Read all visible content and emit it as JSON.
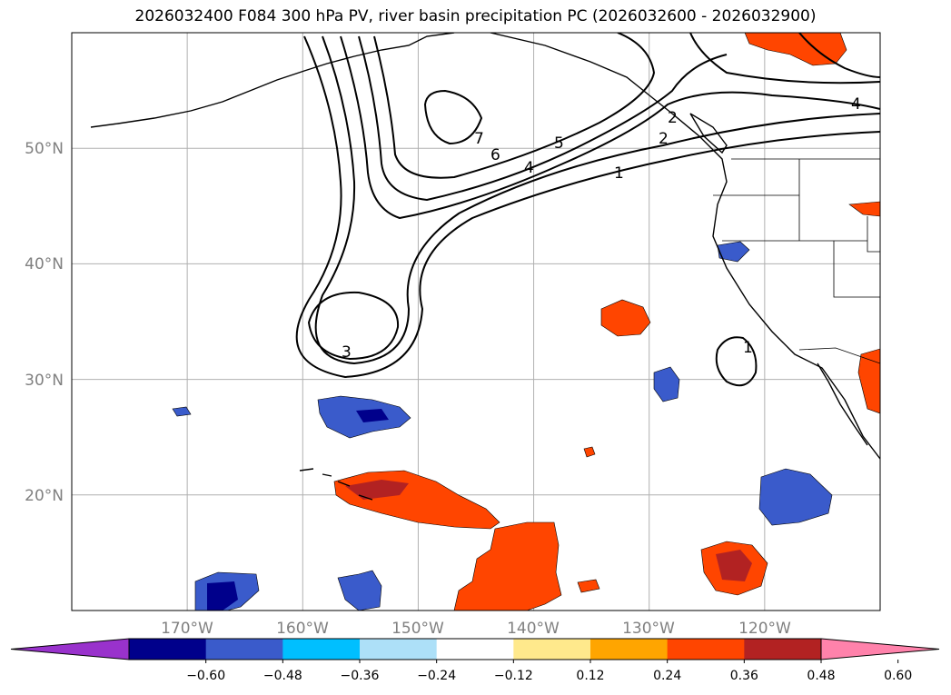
{
  "title": "2026032400 F084 300 hPa PV, river basin precipitation PC (2026032600 - 2026032900)",
  "map": {
    "lon_range": [
      -180,
      -110
    ],
    "lat_range": [
      10,
      60
    ],
    "lat_gridlines": [
      20,
      30,
      40,
      50
    ],
    "lon_gridlines": [
      -170,
      -160,
      -150,
      -140,
      -130,
      -120
    ],
    "lat_labels": [
      "20°N",
      "30°N",
      "40°N",
      "50°N"
    ],
    "lon_labels": [
      "170°W",
      "160°W",
      "150°W",
      "140°W",
      "130°W",
      "120°W"
    ],
    "grid": true
  },
  "pv_contour_labels": [
    "7",
    "6",
    "5",
    "4",
    "3",
    "2",
    "1",
    "1",
    "2",
    "4"
  ],
  "colorbar": {
    "ticks": [
      "−0.60",
      "−0.48",
      "−0.36",
      "−0.24",
      "−0.12",
      "0.12",
      "0.24",
      "0.36",
      "0.48",
      "0.60"
    ],
    "colors": [
      "#9932CC",
      "#00008B",
      "#3A5BCB",
      "#00BFFF",
      "#ADE0F8",
      "#FFFFFF",
      "#FFE98C",
      "#FFA500",
      "#FF4500",
      "#B22222",
      "#FF82AB"
    ],
    "extend": "both"
  }
}
